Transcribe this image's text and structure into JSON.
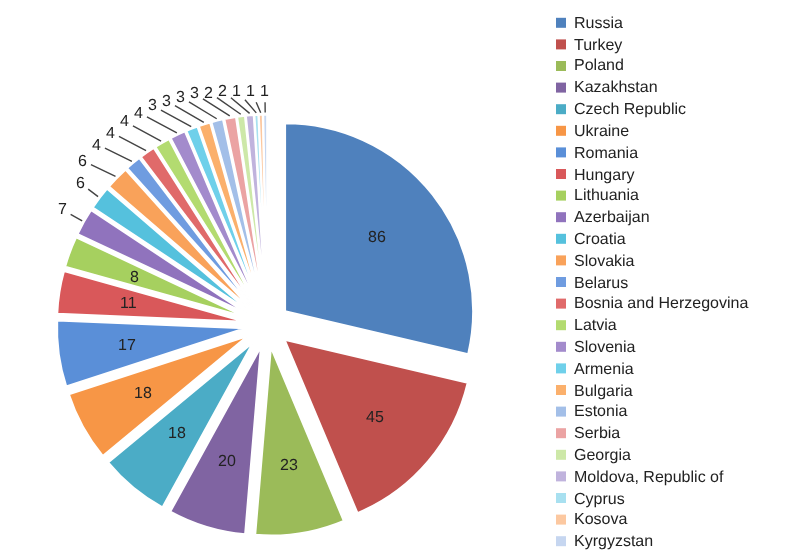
{
  "chart_data": {
    "type": "pie",
    "categories": [
      "Russia",
      "Turkey",
      "Poland",
      "Kazakhstan",
      "Czech Republic",
      "Ukraine",
      "Romania",
      "Hungary",
      "Lithuania",
      "Azerbaijan",
      "Croatia",
      "Slovakia",
      "Belarus",
      "Bosnia and Herzegovina",
      "Latvia",
      "Slovenia",
      "Armenia",
      "Bulgaria",
      "Estonia",
      "Serbia",
      "Georgia",
      "Moldova, Republic of",
      "Cyprus",
      "Kosova",
      "Kyrgyzstan"
    ],
    "values": [
      86,
      45,
      23,
      20,
      18,
      18,
      17,
      11,
      8,
      7,
      6,
      6,
      4,
      4,
      4,
      4,
      3,
      3,
      3,
      3,
      2,
      2,
      1,
      1,
      1
    ],
    "colors": [
      "#4f81bd",
      "#c0504d",
      "#9bbb59",
      "#8064a2",
      "#4bacc6",
      "#f79646",
      "#5a8fd8",
      "#d9585a",
      "#a6d05f",
      "#9073bd",
      "#55c1dd",
      "#f9a25a",
      "#6f9ce0",
      "#e06a6a",
      "#b3db70",
      "#a38bcc",
      "#6fd0ea",
      "#fbb06c",
      "#a3bfe8",
      "#eba3a3",
      "#cde8a8",
      "#c0b3dd",
      "#a8e0f0",
      "#fcc8a0",
      "#c6d6f0"
    ],
    "data_labels": true,
    "legend": "right"
  }
}
